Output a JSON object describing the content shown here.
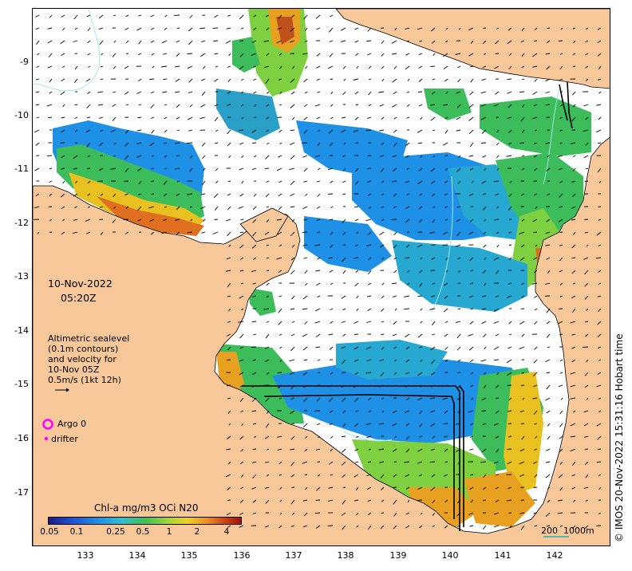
{
  "title_date": "10-Nov-2022",
  "title_time": "05:20Z",
  "annotation_lines": [
    "Altimetric sealevel",
    "(0.1m contours)",
    "and velocity for",
    "10-Nov 05Z",
    "0.5m/s (1kt 12h)"
  ],
  "legend": {
    "argo": "Argo 0",
    "drifter": "drifter"
  },
  "colorbar": {
    "title": "Chl-a mg/m3 OCi N20",
    "ticks": [
      "0.05",
      "0.1",
      "0.25",
      "0.5",
      "1",
      "2",
      "4"
    ]
  },
  "scale_bar": {
    "label1": "200",
    "label2": "1000m"
  },
  "copyright": "© IMOS 20-Nov-2022 15:31:16 Hobart time",
  "axes": {
    "x_ticks": [
      "133",
      "134",
      "135",
      "136",
      "137",
      "138",
      "139",
      "140",
      "141",
      "142"
    ],
    "y_ticks": [
      "-9",
      "-10",
      "-11",
      "-12",
      "-13",
      "-14",
      "-15",
      "-16",
      "-17"
    ]
  },
  "colors": {
    "land": "#f8c89b",
    "ocean": "#ffffff",
    "argo": "#ff00ff"
  }
}
